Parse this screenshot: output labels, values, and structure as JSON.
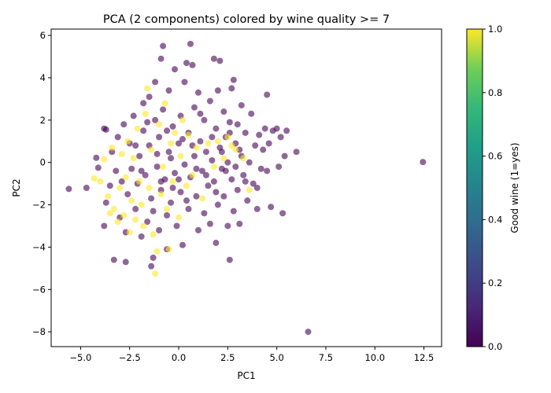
{
  "chart_data": {
    "type": "scatter",
    "title": "PCA (2 components) colored by wine quality >= 7",
    "xlabel": "PC1",
    "ylabel": "PC2",
    "xlim": [
      -6.5,
      13.4
    ],
    "ylim": [
      -8.7,
      6.3
    ],
    "x_ticks": [
      -5.0,
      -2.5,
      0.0,
      2.5,
      5.0,
      7.5,
      10.0,
      12.5
    ],
    "x_tick_labels": [
      "−5.0",
      "−2.5",
      "0.0",
      "2.5",
      "5.0",
      "7.5",
      "10.0",
      "12.5"
    ],
    "y_ticks": [
      -8,
      -6,
      -4,
      -2,
      0,
      2,
      4,
      6
    ],
    "y_tick_labels": [
      "−8",
      "−6",
      "−4",
      "−2",
      "0",
      "2",
      "4",
      "6"
    ],
    "colormap": "viridis",
    "colors": {
      "low": "#440154",
      "high": "#fde725"
    },
    "marker_alpha": 0.6,
    "grid": false,
    "colorbar": {
      "label": "Good wine (1=yes)",
      "range": [
        0,
        1
      ],
      "ticks": [
        0.0,
        0.2,
        0.4,
        0.6,
        0.8,
        1.0
      ],
      "tick_labels": [
        "0.0",
        "0.2",
        "0.4",
        "0.6",
        "0.8",
        "1.0"
      ]
    },
    "series": [
      {
        "value": 0,
        "points": [
          [
            -5.6,
            -1.25
          ],
          [
            -4.7,
            -1.2
          ],
          [
            -4.2,
            0.22
          ],
          [
            -4.1,
            -0.25
          ],
          [
            -3.8,
            1.6
          ],
          [
            -3.7,
            1.55
          ],
          [
            -3.8,
            -3.0
          ],
          [
            -3.7,
            -1.9
          ],
          [
            -3.5,
            -1.1
          ],
          [
            -3.4,
            0.5
          ],
          [
            -3.3,
            -4.6
          ],
          [
            -3.2,
            -0.4
          ],
          [
            -3.1,
            1.2
          ],
          [
            -3.0,
            -2.6
          ],
          [
            -2.9,
            -0.9
          ],
          [
            -2.8,
            1.8
          ],
          [
            -2.7,
            -3.3
          ],
          [
            -2.7,
            -4.7
          ],
          [
            -2.6,
            -1.5
          ],
          [
            -2.5,
            0.9
          ],
          [
            -2.4,
            -0.3
          ],
          [
            -2.3,
            2.2
          ],
          [
            -2.2,
            -2.2
          ],
          [
            -2.1,
            -1.0
          ],
          [
            -2.0,
            0.3
          ],
          [
            -1.9,
            -3.5
          ],
          [
            -1.8,
            1.5
          ],
          [
            -1.8,
            2.8
          ],
          [
            -1.7,
            -0.6
          ],
          [
            -1.6,
            -2.8
          ],
          [
            -1.5,
            3.1
          ],
          [
            -1.5,
            0.8
          ],
          [
            -1.4,
            -1.7
          ],
          [
            -1.3,
            -4.5
          ],
          [
            -1.4,
            -4.9
          ],
          [
            -1.2,
            3.8
          ],
          [
            -1.2,
            2.0
          ],
          [
            -1.1,
            -0.2
          ],
          [
            -1.0,
            -3.2
          ],
          [
            -1.0,
            1.2
          ],
          [
            -0.9,
            4.9
          ],
          [
            -0.9,
            -1.3
          ],
          [
            -0.8,
            5.5
          ],
          [
            -0.8,
            2.5
          ],
          [
            -0.7,
            -0.8
          ],
          [
            -0.6,
            -2.5
          ],
          [
            -0.6,
            -4.1
          ],
          [
            -0.5,
            0.5
          ],
          [
            -0.5,
            3.4
          ],
          [
            -0.4,
            -1.9
          ],
          [
            -0.3,
            1.7
          ],
          [
            -0.2,
            -0.5
          ],
          [
            -0.2,
            4.4
          ],
          [
            -0.1,
            -3.0
          ],
          [
            0.0,
            0.9
          ],
          [
            0.1,
            2.2
          ],
          [
            0.1,
            -1.4
          ],
          [
            0.2,
            -3.9
          ],
          [
            0.3,
            -0.1
          ],
          [
            0.3,
            3.8
          ],
          [
            0.4,
            4.7
          ],
          [
            0.5,
            1.4
          ],
          [
            0.5,
            -2.2
          ],
          [
            0.6,
            5.6
          ],
          [
            0.6,
            -0.7
          ],
          [
            0.7,
            4.6
          ],
          [
            0.8,
            2.6
          ],
          [
            0.8,
            0.3
          ],
          [
            0.9,
            -1.6
          ],
          [
            1.0,
            3.3
          ],
          [
            1.0,
            -3.2
          ],
          [
            1.1,
            1.0
          ],
          [
            1.2,
            -0.4
          ],
          [
            1.3,
            2.0
          ],
          [
            1.3,
            -2.4
          ],
          [
            1.4,
            0.5
          ],
          [
            1.5,
            -1.1
          ],
          [
            1.6,
            2.9
          ],
          [
            1.6,
            -2.9
          ],
          [
            1.7,
            0.1
          ],
          [
            1.8,
            4.9
          ],
          [
            1.8,
            -0.9
          ],
          [
            1.9,
            1.6
          ],
          [
            1.9,
            -3.8
          ],
          [
            2.0,
            3.4
          ],
          [
            2.0,
            -2.0
          ],
          [
            2.1,
            4.8
          ],
          [
            2.1,
            0.7
          ],
          [
            2.2,
            -0.3
          ],
          [
            2.3,
            2.4
          ],
          [
            2.3,
            -1.6
          ],
          [
            2.4,
            1.2
          ],
          [
            2.5,
            -3.0
          ],
          [
            2.5,
            0.0
          ],
          [
            2.6,
            -4.6
          ],
          [
            2.6,
            1.9
          ],
          [
            2.7,
            -0.8
          ],
          [
            2.7,
            3.5
          ],
          [
            2.8,
            3.9
          ],
          [
            2.8,
            -2.3
          ],
          [
            2.9,
            0.9
          ],
          [
            3.0,
            1.8
          ],
          [
            3.0,
            -1.3
          ],
          [
            3.1,
            -2.9
          ],
          [
            3.2,
            0.3
          ],
          [
            3.2,
            2.7
          ],
          [
            3.3,
            -0.6
          ],
          [
            3.4,
            1.4
          ],
          [
            3.5,
            -1.8
          ],
          [
            3.6,
            0.0
          ],
          [
            3.7,
            2.3
          ],
          [
            3.8,
            -1.0
          ],
          [
            3.9,
            0.8
          ],
          [
            4.0,
            -1.2
          ],
          [
            4.0,
            -2.2
          ],
          [
            4.1,
            1.3
          ],
          [
            4.2,
            -0.3
          ],
          [
            4.3,
            0.6
          ],
          [
            4.4,
            1.6
          ],
          [
            4.5,
            3.2
          ],
          [
            4.5,
            -0.4
          ],
          [
            4.6,
            0.9
          ],
          [
            4.7,
            -2.1
          ],
          [
            4.8,
            1.5
          ],
          [
            5.0,
            1.6
          ],
          [
            5.1,
            -0.2
          ],
          [
            5.2,
            1.2
          ],
          [
            5.3,
            -2.4
          ],
          [
            5.4,
            0.3
          ],
          [
            5.5,
            1.5
          ],
          [
            6.0,
            0.5
          ],
          [
            6.6,
            -8.0
          ],
          [
            12.45,
            0.02
          ],
          [
            -2.2,
            0.8
          ],
          [
            -1.9,
            -0.4
          ],
          [
            -1.6,
            1.9
          ],
          [
            -1.3,
            -2.3
          ],
          [
            -1.1,
            0.4
          ],
          [
            -0.9,
            -0.9
          ],
          [
            -0.6,
            1.5
          ],
          [
            -0.4,
            0.2
          ],
          [
            -0.3,
            -1.2
          ],
          [
            0.0,
            -0.8
          ],
          [
            0.2,
            1.1
          ],
          [
            0.4,
            -1.8
          ],
          [
            0.7,
            0.8
          ],
          [
            0.9,
            -0.3
          ],
          [
            1.1,
            2.3
          ],
          [
            1.4,
            -0.6
          ],
          [
            1.7,
            1.2
          ],
          [
            1.9,
            -1.4
          ],
          [
            2.2,
            0.5
          ],
          [
            2.4,
            -0.4
          ],
          [
            2.6,
            1.4
          ],
          [
            2.9,
            -0.2
          ],
          [
            3.1,
            0.6
          ],
          [
            3.4,
            -0.9
          ]
        ]
      },
      {
        "value": 1,
        "points": [
          [
            -4.3,
            -0.75
          ],
          [
            -4.0,
            -0.9
          ],
          [
            -3.8,
            0.15
          ],
          [
            -3.6,
            -1.6
          ],
          [
            -3.5,
            -2.4
          ],
          [
            -3.4,
            0.7
          ],
          [
            -3.3,
            -2.2
          ],
          [
            -3.1,
            -2.8
          ],
          [
            -3.0,
            -1.2
          ],
          [
            -2.9,
            0.4
          ],
          [
            -2.8,
            -2.5
          ],
          [
            -2.7,
            -0.7
          ],
          [
            -2.6,
            1.0
          ],
          [
            -2.5,
            -3.3
          ],
          [
            -2.4,
            -1.8
          ],
          [
            -2.3,
            0.2
          ],
          [
            -2.2,
            -2.7
          ],
          [
            -2.1,
            1.6
          ],
          [
            -2.0,
            -0.9
          ],
          [
            -1.9,
            -2.0
          ],
          [
            -1.8,
            -3.0
          ],
          [
            -1.7,
            2.3
          ],
          [
            -1.6,
            3.5
          ],
          [
            -1.5,
            -1.2
          ],
          [
            -1.4,
            0.6
          ],
          [
            -1.3,
            -3.4
          ],
          [
            -1.2,
            -5.25
          ],
          [
            -1.1,
            -4.2
          ],
          [
            -1.0,
            1.8
          ],
          [
            -0.9,
            -1.5
          ],
          [
            -0.8,
            -0.2
          ],
          [
            -0.7,
            2.8
          ],
          [
            -0.6,
            -2.2
          ],
          [
            -0.5,
            -4.1
          ],
          [
            -0.4,
            0.9
          ],
          [
            -0.3,
            -0.9
          ],
          [
            -0.2,
            1.4
          ],
          [
            0.0,
            -2.6
          ],
          [
            0.1,
            0.3
          ],
          [
            0.2,
            2.0
          ],
          [
            0.4,
            -1.1
          ],
          [
            0.5,
            1.3
          ],
          [
            0.7,
            -0.6
          ],
          [
            0.9,
            0.7
          ],
          [
            1.2,
            -1.7
          ],
          [
            1.5,
            0.9
          ],
          [
            1.8,
            -0.2
          ],
          [
            2.0,
            1.0
          ],
          [
            2.3,
            0.2
          ],
          [
            2.5,
            1.2
          ],
          [
            2.7,
            0.8
          ],
          [
            2.9,
            0.6
          ],
          [
            3.3,
            0.2
          ],
          [
            3.6,
            -1.3
          ]
        ]
      }
    ]
  }
}
